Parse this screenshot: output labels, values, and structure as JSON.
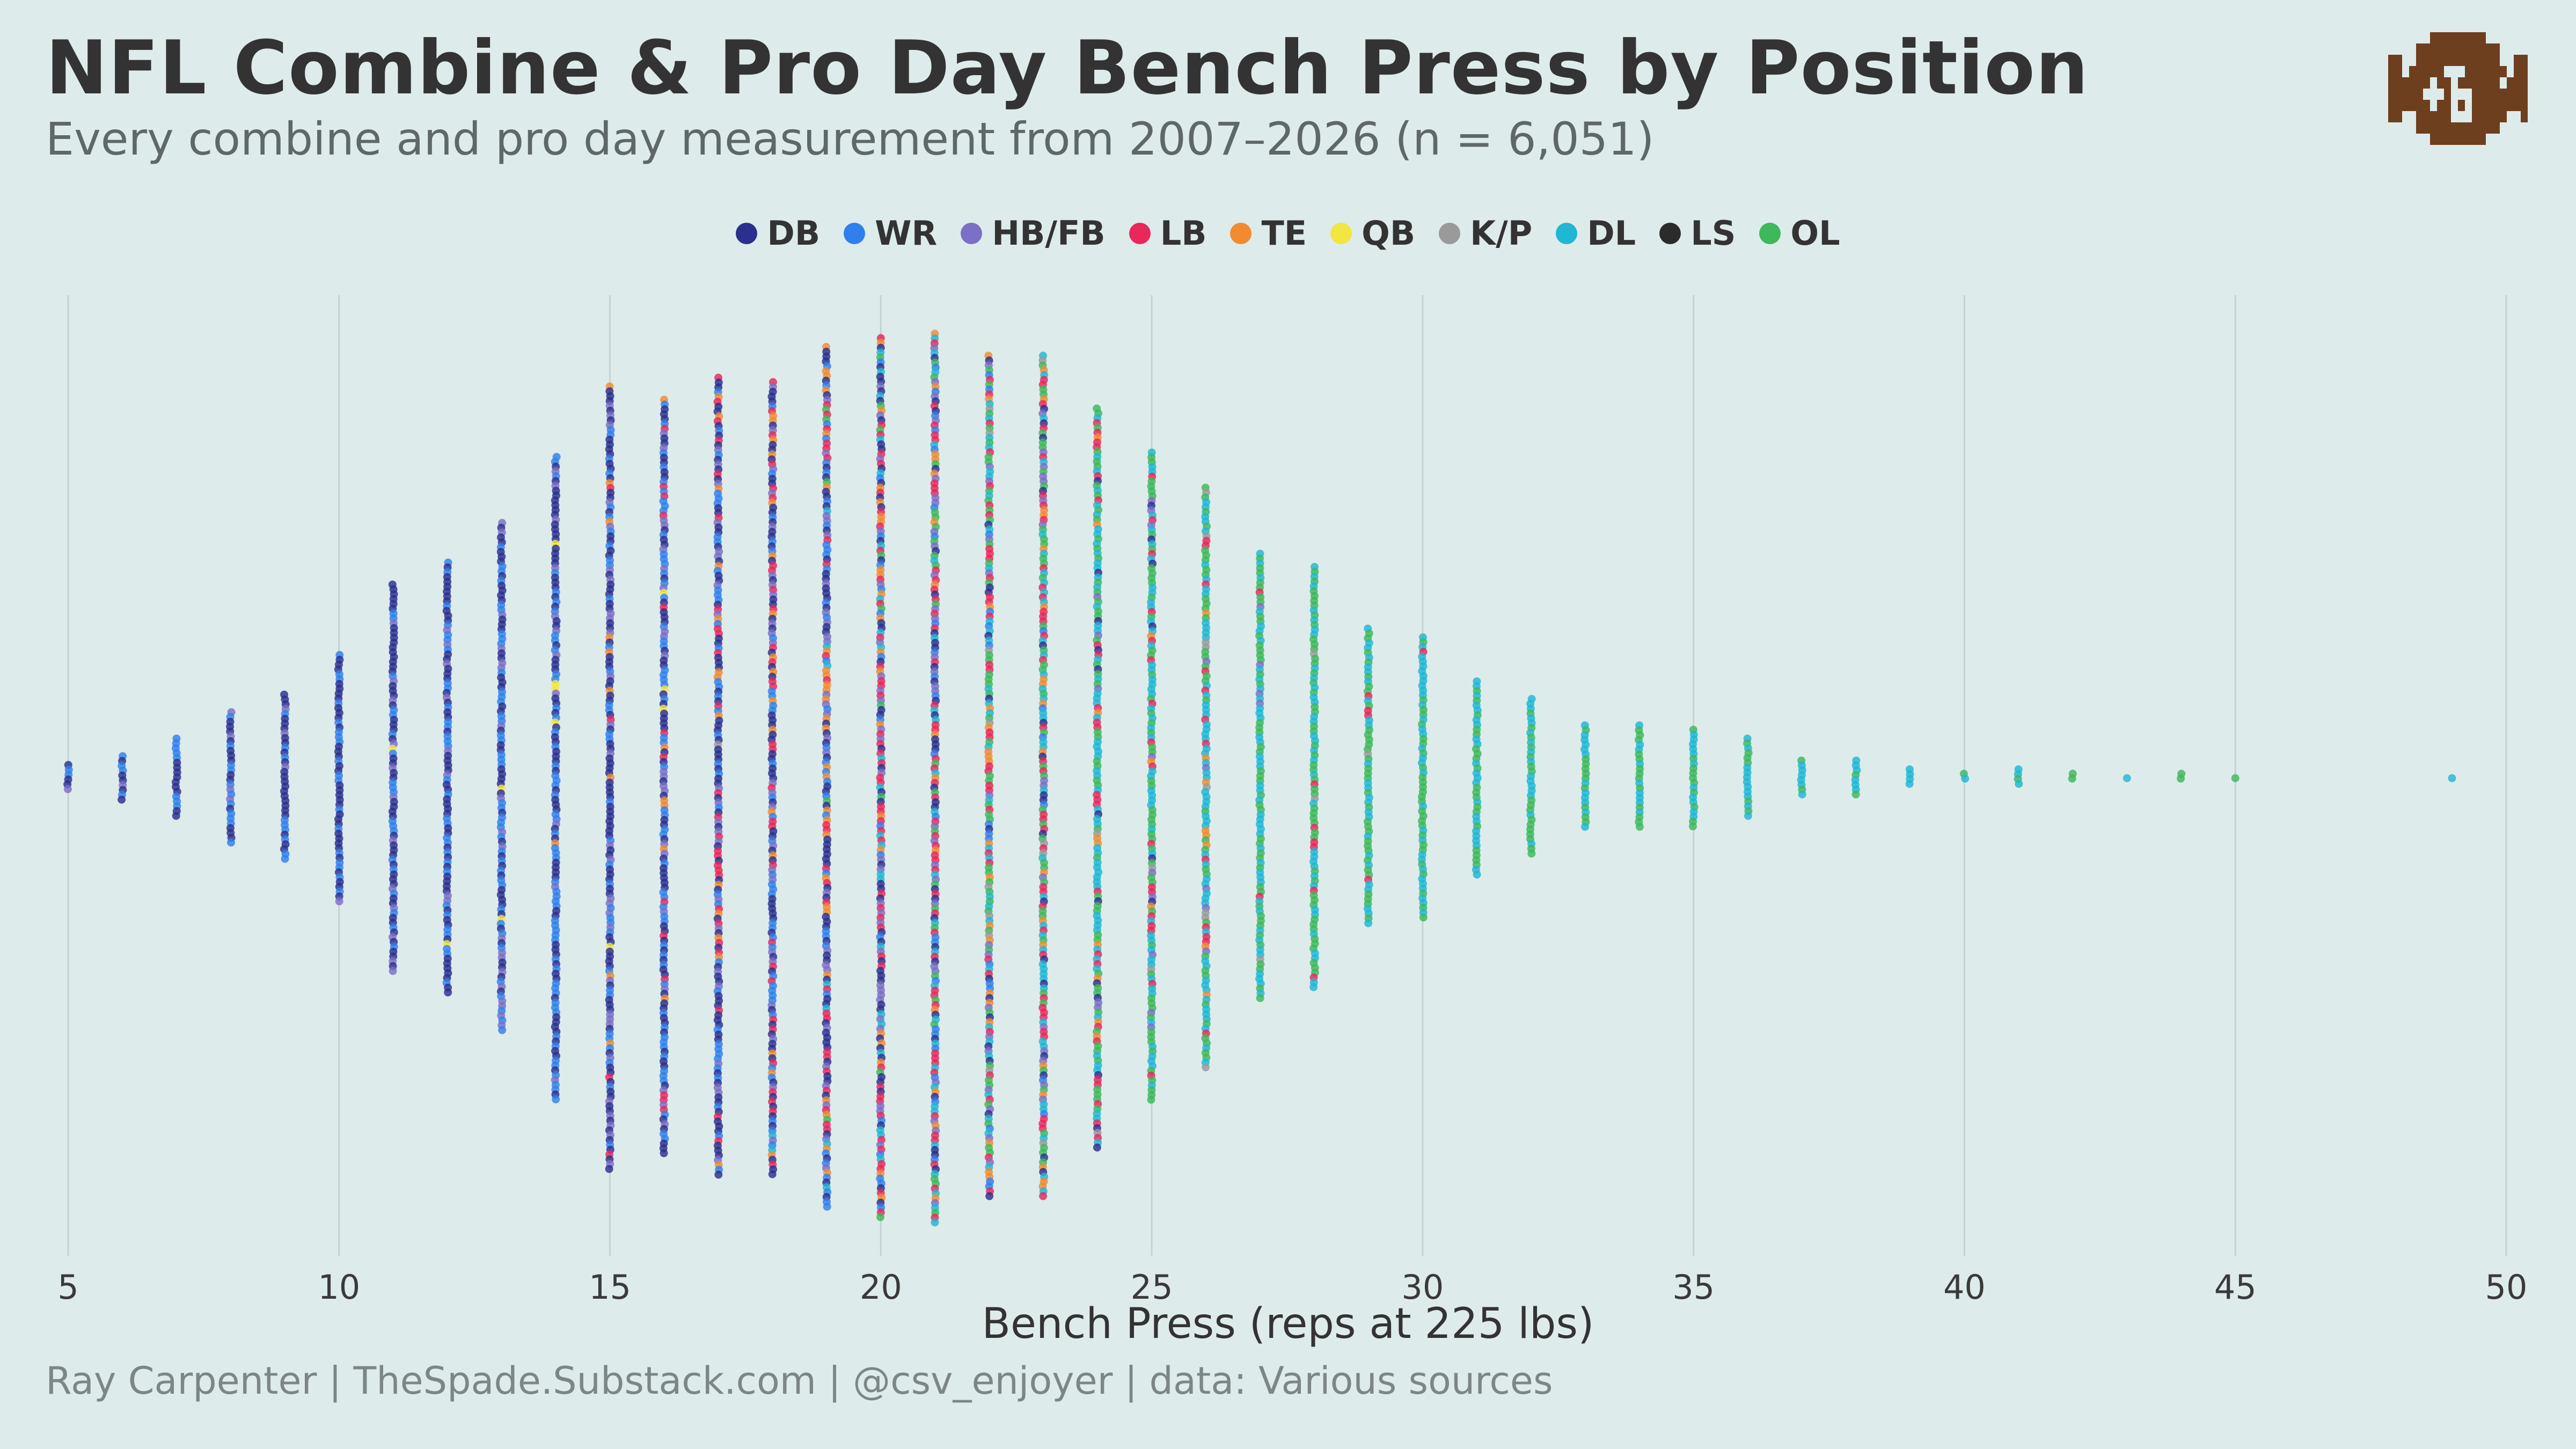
{
  "chart_data": {
    "type": "scatter",
    "subtype": "beeswarm",
    "title": "NFL Combine & Pro Day Bench Press by Position",
    "subtitle": "Every combine and pro day measurement from 2007–2026 (n = 6,051)",
    "xlabel": "Bench Press (reps at 225 lbs)",
    "ylabel": "",
    "xlim": [
      5,
      50
    ],
    "xticks": [
      5,
      10,
      15,
      20,
      25,
      30,
      35,
      40,
      45,
      50
    ],
    "grid": true,
    "legend_position": "top-center",
    "legend": [
      {
        "name": "DB",
        "color": "#2b2f8f"
      },
      {
        "name": "WR",
        "color": "#2f80ed"
      },
      {
        "name": "HB/FB",
        "color": "#7b6fc6"
      },
      {
        "name": "LB",
        "color": "#e8275a"
      },
      {
        "name": "TE",
        "color": "#f28b30"
      },
      {
        "name": "QB",
        "color": "#f2e640"
      },
      {
        "name": "K/P",
        "color": "#9a9a9a"
      },
      {
        "name": "DL",
        "color": "#1fb7d4"
      },
      {
        "name": "LS",
        "color": "#2b2b2b"
      },
      {
        "name": "OL",
        "color": "#3db85a"
      }
    ],
    "columns": [
      {
        "reps": 5,
        "half_spread": 0.03,
        "mix": {
          "DB": 6,
          "WR": 3,
          "HB/FB": 1
        }
      },
      {
        "reps": 6,
        "half_spread": 0.05,
        "mix": {
          "DB": 5,
          "WR": 4,
          "HB/FB": 1
        }
      },
      {
        "reps": 7,
        "half_spread": 0.09,
        "mix": {
          "DB": 5,
          "WR": 4,
          "HB/FB": 1
        }
      },
      {
        "reps": 8,
        "half_spread": 0.15,
        "mix": {
          "DB": 5,
          "WR": 4,
          "HB/FB": 1
        }
      },
      {
        "reps": 9,
        "half_spread": 0.19,
        "mix": {
          "DB": 5,
          "WR": 4,
          "HB/FB": 1
        }
      },
      {
        "reps": 10,
        "half_spread": 0.28,
        "mix": {
          "DB": 6,
          "WR": 3,
          "HB/FB": 1,
          "QB": 0.3
        }
      },
      {
        "reps": 11,
        "half_spread": 0.44,
        "mix": {
          "DB": 6,
          "WR": 3,
          "HB/FB": 1,
          "QB": 0.3
        }
      },
      {
        "reps": 12,
        "half_spread": 0.49,
        "mix": {
          "DB": 6,
          "WR": 3,
          "HB/FB": 1,
          "QB": 0.3
        }
      },
      {
        "reps": 13,
        "half_spread": 0.58,
        "mix": {
          "DB": 5,
          "WR": 4,
          "HB/FB": 1,
          "QB": 0.3
        }
      },
      {
        "reps": 14,
        "half_spread": 0.73,
        "mix": {
          "DB": 5,
          "WR": 4,
          "HB/FB": 1.2,
          "QB": 0.3,
          "TE": 0.2
        }
      },
      {
        "reps": 15,
        "half_spread": 0.89,
        "mix": {
          "DB": 5,
          "WR": 3,
          "HB/FB": 1.5,
          "QB": 0.3,
          "TE": 0.5,
          "LB": 0.5
        }
      },
      {
        "reps": 16,
        "half_spread": 0.86,
        "mix": {
          "DB": 4,
          "WR": 3.5,
          "HB/FB": 1.5,
          "QB": 0.3,
          "TE": 0.7,
          "LB": 0.8
        }
      },
      {
        "reps": 17,
        "half_spread": 0.91,
        "mix": {
          "DB": 4,
          "WR": 2.5,
          "HB/FB": 1.5,
          "TE": 1,
          "LB": 1.2,
          "K/P": 0.2
        }
      },
      {
        "reps": 18,
        "half_spread": 0.9,
        "mix": {
          "DB": 3.5,
          "WR": 2,
          "HB/FB": 1.5,
          "TE": 1,
          "LB": 1.5,
          "DL": 0.2
        }
      },
      {
        "reps": 19,
        "half_spread": 0.98,
        "mix": {
          "DB": 3,
          "WR": 1.5,
          "HB/FB": 1.5,
          "TE": 1.2,
          "LB": 2,
          "DL": 0.5,
          "OL": 0.3
        }
      },
      {
        "reps": 20,
        "half_spread": 1.0,
        "mix": {
          "DB": 2.5,
          "WR": 1,
          "HB/FB": 1.5,
          "TE": 1.2,
          "LB": 2.5,
          "DL": 1,
          "OL": 0.8
        }
      },
      {
        "reps": 21,
        "half_spread": 1.01,
        "mix": {
          "DB": 2,
          "WR": 0.8,
          "HB/FB": 1.3,
          "TE": 1,
          "LB": 2.5,
          "DL": 1.3,
          "OL": 1.2
        }
      },
      {
        "reps": 22,
        "half_spread": 0.96,
        "mix": {
          "DB": 1,
          "WR": 0.5,
          "HB/FB": 1,
          "TE": 1,
          "LB": 2,
          "DL": 2,
          "OL": 2,
          "K/P": 0.2
        }
      },
      {
        "reps": 23,
        "half_spread": 0.96,
        "mix": {
          "DB": 0.8,
          "WR": 0.3,
          "HB/FB": 0.8,
          "TE": 1,
          "LB": 2,
          "DL": 2.5,
          "OL": 2.5,
          "K/P": 0.2
        }
      },
      {
        "reps": 24,
        "half_spread": 0.84,
        "mix": {
          "DB": 0.5,
          "HB/FB": 0.6,
          "TE": 0.8,
          "LB": 1.5,
          "DL": 3,
          "OL": 3,
          "K/P": 0.2
        }
      },
      {
        "reps": 25,
        "half_spread": 0.74,
        "mix": {
          "DB": 0.3,
          "HB/FB": 0.4,
          "TE": 0.5,
          "LB": 1.2,
          "DL": 3.5,
          "OL": 3.5,
          "K/P": 0.2
        }
      },
      {
        "reps": 26,
        "half_spread": 0.66,
        "mix": {
          "HB/FB": 0.3,
          "TE": 0.4,
          "LB": 0.8,
          "DL": 4,
          "OL": 4,
          "K/P": 0.3
        }
      },
      {
        "reps": 27,
        "half_spread": 0.51,
        "mix": {
          "HB/FB": 0.2,
          "TE": 0.2,
          "LB": 0.6,
          "DL": 4,
          "OL": 4.5,
          "K/P": 0.3
        }
      },
      {
        "reps": 28,
        "half_spread": 0.48,
        "mix": {
          "LB": 0.4,
          "DL": 4.5,
          "OL": 5,
          "K/P": 0.3
        }
      },
      {
        "reps": 29,
        "half_spread": 0.34,
        "mix": {
          "LB": 0.3,
          "DL": 4.5,
          "OL": 5,
          "K/P": 0.3
        }
      },
      {
        "reps": 30,
        "half_spread": 0.32,
        "mix": {
          "LB": 0.2,
          "DL": 5,
          "OL": 5
        }
      },
      {
        "reps": 31,
        "half_spread": 0.22,
        "mix": {
          "DL": 5,
          "OL": 5
        }
      },
      {
        "reps": 32,
        "half_spread": 0.18,
        "mix": {
          "DL": 5,
          "OL": 5
        }
      },
      {
        "reps": 33,
        "half_spread": 0.12,
        "mix": {
          "DL": 5,
          "OL": 5
        }
      },
      {
        "reps": 34,
        "half_spread": 0.12,
        "mix": {
          "DL": 5,
          "OL": 5
        }
      },
      {
        "reps": 35,
        "half_spread": 0.11,
        "mix": {
          "DL": 5,
          "OL": 5
        }
      },
      {
        "reps": 36,
        "half_spread": 0.09,
        "mix": {
          "DL": 5,
          "OL": 5
        }
      },
      {
        "reps": 37,
        "half_spread": 0.04,
        "mix": {
          "DL": 5,
          "OL": 5
        }
      },
      {
        "reps": 38,
        "half_spread": 0.04,
        "mix": {
          "DL": 5,
          "OL": 5
        }
      },
      {
        "reps": 39,
        "half_spread": 0.02,
        "mix": {
          "DL": 5,
          "OL": 5
        }
      },
      {
        "reps": 40,
        "half_spread": 0.01,
        "mix": {
          "DL": 4,
          "OL": 6
        }
      },
      {
        "reps": 41,
        "half_spread": 0.02,
        "mix": {
          "DL": 5,
          "OL": 5
        }
      },
      {
        "reps": 42,
        "half_spread": 0.01,
        "mix": {
          "DL": 5,
          "OL": 5
        }
      },
      {
        "reps": 43,
        "half_spread": 0.0,
        "mix": {
          "DL": 10
        }
      },
      {
        "reps": 44,
        "half_spread": 0.01,
        "mix": {
          "DL": 6,
          "OL": 4
        }
      },
      {
        "reps": 45,
        "half_spread": 0.0,
        "mix": {
          "OL": 10
        }
      },
      {
        "reps": 49,
        "half_spread": 0.0,
        "mix": {
          "DL": 10
        }
      }
    ]
  },
  "caption": "Ray Carpenter | TheSpade.Substack.com | @csv_enjoyer | data: Various sources",
  "logo_color": "#6e3f1e"
}
